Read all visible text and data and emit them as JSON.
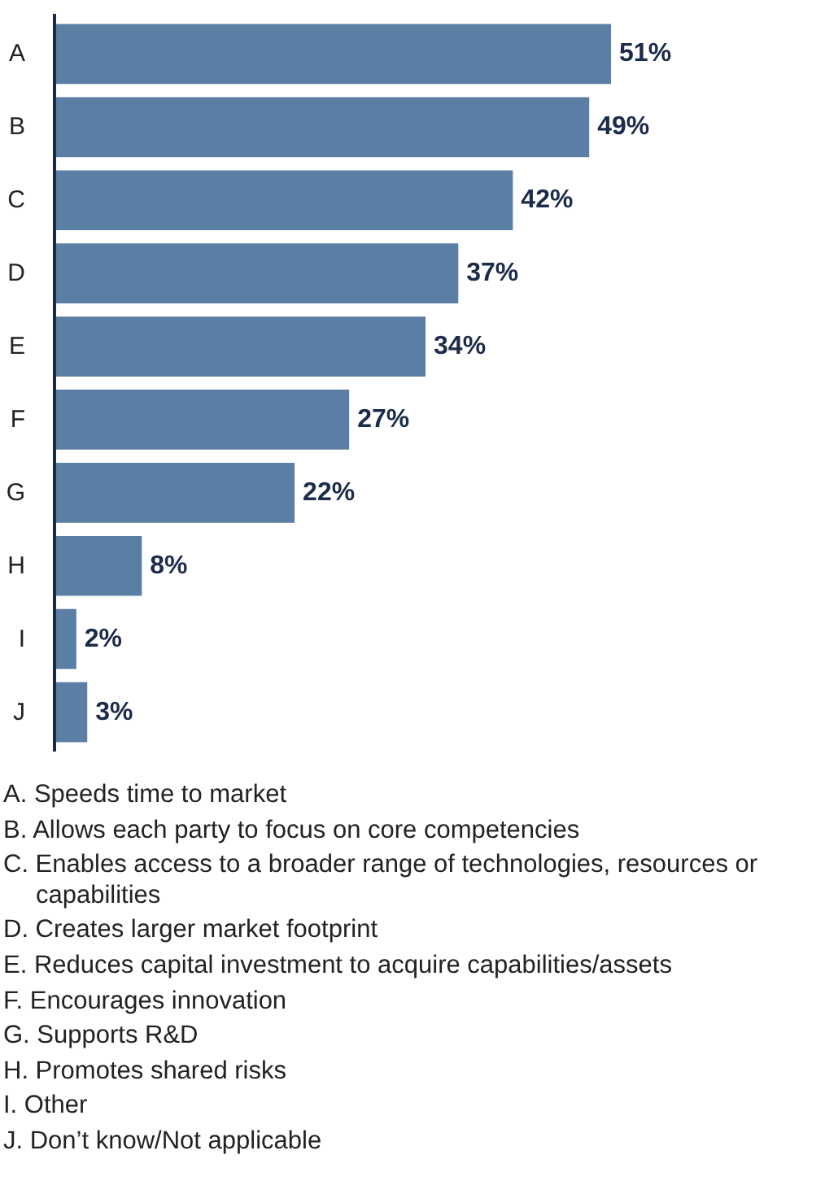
{
  "chart_data": {
    "type": "bar",
    "orientation": "horizontal",
    "categories": [
      "A",
      "B",
      "C",
      "D",
      "E",
      "F",
      "G",
      "H",
      "I",
      "J"
    ],
    "values": [
      51,
      49,
      42,
      37,
      34,
      27,
      22,
      8,
      2,
      3
    ],
    "value_labels": [
      "51%",
      "49%",
      "42%",
      "37%",
      "34%",
      "27%",
      "22%",
      "8%",
      "2%",
      "3%"
    ],
    "color": "#5b7ea4",
    "grid": false,
    "tick_labels": "y",
    "annotations": [
      "A.  Speeds time to market",
      "B.  Allows each party to focus on core competencies",
      "C.  Enables access to a broader range of technologies, resources or capabilities",
      "D.  Creates larger market footprint",
      "E.  Reduces capital investment to acquire capabilities/assets",
      "F.  Encourages innovation",
      "G.  Supports R&D",
      "H.  Promotes shared risks",
      "I.   Other",
      "J.  Don’t know/Not applicable"
    ]
  }
}
